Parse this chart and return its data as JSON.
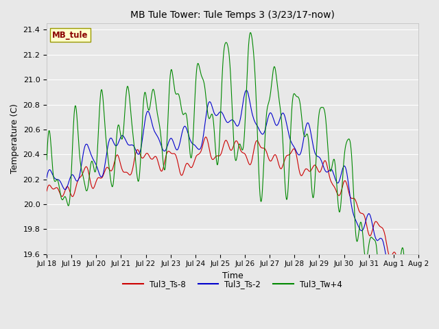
{
  "title": "MB Tule Tower: Tule Temps 3 (3/23/17-now)",
  "xlabel": "Time",
  "ylabel": "Temperature (C)",
  "ylim": [
    19.6,
    21.45
  ],
  "yticks": [
    19.6,
    19.8,
    20.0,
    20.2,
    20.4,
    20.6,
    20.8,
    21.0,
    21.2,
    21.4
  ],
  "xlim_start": 0,
  "xlim_end": 15,
  "xtick_labels": [
    "Jul 18",
    "Jul 19",
    "Jul 20",
    "Jul 21",
    "Jul 22",
    "Jul 23",
    "Jul 24",
    "Jul 25",
    "Jul 26",
    "Jul 27",
    "Jul 28",
    "Jul 29",
    "Jul 30",
    "Jul 31",
    "Aug 1",
    "Aug 2"
  ],
  "bg_color": "#e8e8e8",
  "axes_bg_color": "#e8e8e8",
  "grid_color": "#ffffff",
  "line_red": "#cc0000",
  "line_blue": "#0000cc",
  "line_green": "#008800",
  "legend_label": "MB_tule",
  "series_labels": [
    "Tul3_Ts-8",
    "Tul3_Ts-2",
    "Tul3_Tw+4"
  ],
  "series_colors": [
    "#cc0000",
    "#0000cc",
    "#008800"
  ]
}
